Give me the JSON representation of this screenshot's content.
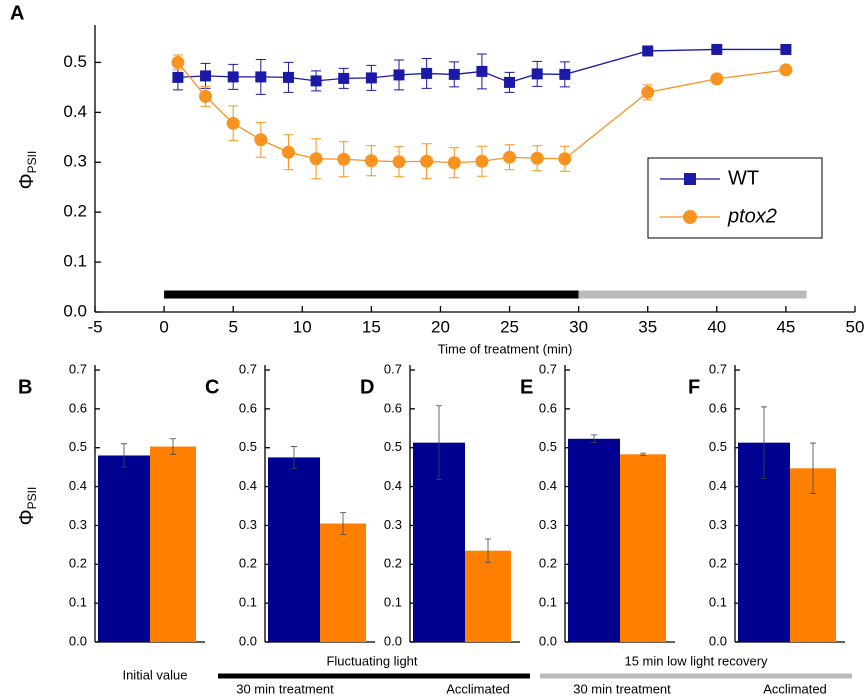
{
  "chart_data": [
    {
      "type": "line",
      "label": "A",
      "xlabel": "Time of treatment (min)",
      "ylabel": "Φ",
      "ylabel_sub": "PSII",
      "x": [
        1,
        3,
        5,
        7,
        9,
        11,
        13,
        15,
        17,
        19,
        21,
        23,
        25,
        27,
        29,
        35,
        40,
        45
      ],
      "series": [
        {
          "name": "WT",
          "color": "#1a1aa6",
          "marker": "square",
          "values": [
            0.47,
            0.473,
            0.471,
            0.471,
            0.47,
            0.463,
            0.468,
            0.469,
            0.475,
            0.478,
            0.476,
            0.482,
            0.46,
            0.477,
            0.476,
            0.523,
            0.526,
            0.526
          ],
          "errors": [
            0.025,
            0.025,
            0.025,
            0.035,
            0.03,
            0.02,
            0.02,
            0.025,
            0.03,
            0.03,
            0.025,
            0.035,
            0.02,
            0.025,
            0.025,
            0.005,
            0.005,
            0.005
          ]
        },
        {
          "name": "ptox2",
          "color": "#f7931e",
          "marker": "circle",
          "values": [
            0.5,
            0.432,
            0.378,
            0.345,
            0.32,
            0.307,
            0.306,
            0.303,
            0.301,
            0.302,
            0.299,
            0.302,
            0.31,
            0.308,
            0.307,
            0.44,
            0.467,
            0.485
          ],
          "errors": [
            0.015,
            0.02,
            0.035,
            0.035,
            0.035,
            0.04,
            0.035,
            0.03,
            0.03,
            0.035,
            0.03,
            0.03,
            0.025,
            0.025,
            0.025,
            0.015,
            0.005,
            0.005
          ]
        }
      ],
      "periods": [
        {
          "start": 0,
          "end": 30,
          "color": "#000000"
        },
        {
          "start": 30,
          "end": 46.5,
          "color": "#bbbbbb"
        }
      ],
      "period_y": 0.035,
      "xlim": [
        -5,
        50
      ],
      "xticks": [
        -5,
        0,
        5,
        10,
        15,
        20,
        25,
        30,
        35,
        40,
        45,
        50
      ],
      "ylim": [
        0,
        0.575
      ],
      "yticks": [
        {
          "value": 0,
          "label": "0.0"
        },
        0.1,
        0.2,
        0.3,
        0.4,
        0.5
      ],
      "legend": "right"
    },
    {
      "type": "bar",
      "label": "B",
      "ylabel": "Φ",
      "ylabel_sub": "PSII",
      "xlabel": "Initial value",
      "values": [
        0.48,
        0.503
      ],
      "errors": [
        0.03,
        0.02
      ],
      "colors": [
        "#000090",
        "#ff8000"
      ],
      "ylim": [
        0,
        0.7
      ],
      "yticks": [
        {
          "value": 0,
          "label": "0.0"
        },
        0.1,
        0.2,
        0.3,
        0.4,
        0.5,
        0.6,
        0.7
      ]
    },
    {
      "type": "bar",
      "label": "C",
      "xlabel": "30 min treatment",
      "values": [
        0.475,
        0.305
      ],
      "errors": [
        0.028,
        0.028
      ],
      "colors": [
        "#000090",
        "#ff8000"
      ],
      "ylim": [
        0,
        0.7
      ],
      "yticks": [
        {
          "value": 0,
          "label": "0.0"
        },
        0.1,
        0.2,
        0.3,
        0.4,
        0.5,
        0.6,
        0.7
      ]
    },
    {
      "type": "bar",
      "label": "D",
      "xlabel": "Acclimated",
      "values": [
        0.513,
        0.235
      ],
      "errors": [
        0.095,
        0.03
      ],
      "colors": [
        "#000090",
        "#ff8000"
      ],
      "ylim": [
        0,
        0.7
      ],
      "yticks": [
        {
          "value": 0,
          "label": "0.0"
        },
        0.1,
        0.2,
        0.3,
        0.4,
        0.5,
        0.6,
        0.7
      ]
    },
    {
      "type": "bar",
      "label": "E",
      "xlabel": "30 min treatment",
      "values": [
        0.523,
        0.483
      ],
      "errors": [
        0.01,
        0.003
      ],
      "colors": [
        "#000090",
        "#ff8000"
      ],
      "ylim": [
        0,
        0.7
      ],
      "yticks": [
        {
          "value": 0,
          "label": "0.0"
        },
        0.1,
        0.2,
        0.3,
        0.4,
        0.5,
        0.6,
        0.7
      ]
    },
    {
      "type": "bar",
      "label": "F",
      "xlabel": "Acclimated",
      "values": [
        0.513,
        0.447
      ],
      "errors": [
        0.092,
        0.065
      ],
      "colors": [
        "#000090",
        "#ff8000"
      ],
      "ylim": [
        0,
        0.7
      ],
      "yticks": [
        {
          "value": 0,
          "label": "0.0"
        },
        0.1,
        0.2,
        0.3,
        0.4,
        0.5,
        0.6,
        0.7
      ]
    }
  ],
  "groups": [
    {
      "label": "Fluctuating light"
    },
    {
      "label": "15 min low light recovery"
    }
  ]
}
